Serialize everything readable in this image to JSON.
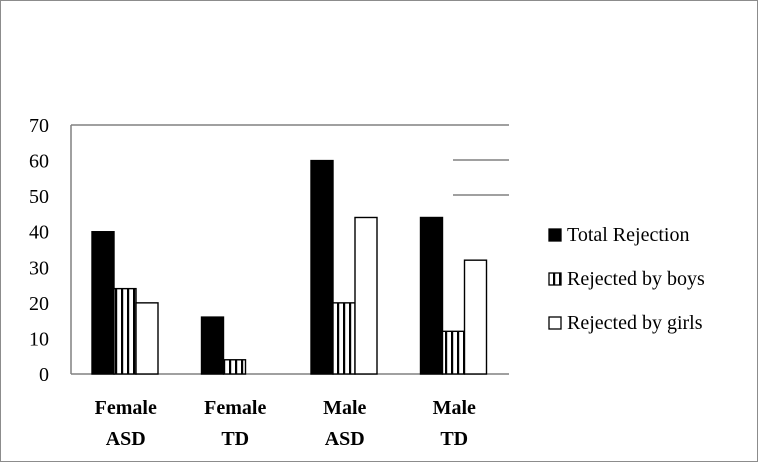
{
  "chart_data": {
    "type": "bar",
    "title": "",
    "xlabel": "",
    "ylabel": "",
    "ylim": [
      0,
      70
    ],
    "yticks": [
      0,
      10,
      20,
      30,
      40,
      50,
      60,
      70
    ],
    "categories": [
      [
        "Female",
        "ASD"
      ],
      [
        "Female",
        "TD"
      ],
      [
        "Male",
        "ASD"
      ],
      [
        "Male",
        "TD"
      ]
    ],
    "series": [
      {
        "name": "Total Rejection",
        "values": [
          40,
          16,
          60,
          44
        ],
        "fill": "solid-black"
      },
      {
        "name": "Rejected by boys",
        "values": [
          24,
          4,
          20,
          12
        ],
        "fill": "vertical-stripes"
      },
      {
        "name": "Rejected by girls",
        "values": [
          20,
          0,
          44,
          32
        ],
        "fill": "white"
      }
    ],
    "legend_position": "right",
    "grid": false
  },
  "colors": {
    "bar_dark": "#000000",
    "bar_light": "#ffffff",
    "axis": "#808080"
  }
}
